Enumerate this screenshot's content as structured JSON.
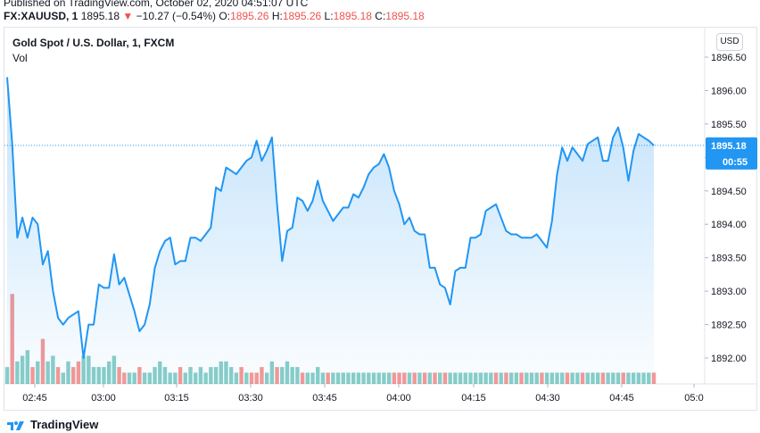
{
  "header": {
    "published": "Published on TradingView.com, October 02, 2020 04:51:07 UTC",
    "symbol": "FX:XAUUSD, 1",
    "last": "1895.18",
    "change_arrow": "▼",
    "change": "−10.27 (−0.54%)",
    "o_label": "O:",
    "o": "1895.26",
    "h_label": "H:",
    "h": "1895.26",
    "l_label": "L:",
    "l": "1895.18",
    "c_label": "C:",
    "c": "1895.18"
  },
  "legend": {
    "title": "Gold Spot / U.S. Dollar, 1, FXCM",
    "vol_label": "Vol"
  },
  "currency_button": "USD",
  "price_tag": {
    "value": "1895.18",
    "countdown": "00:55"
  },
  "footer": {
    "brand": "TradingView"
  },
  "colors": {
    "line": "#2196f3",
    "up_volume": "#26a69a",
    "down_volume": "#ef5350",
    "price_tag": "#2196f3"
  },
  "chart_data": {
    "type": "area",
    "y_ticks": [
      "1896.50",
      "1896.00",
      "1895.50",
      "1895.00",
      "1894.50",
      "1894.00",
      "1893.50",
      "1893.00",
      "1892.50",
      "1892.00"
    ],
    "x_ticks": [
      "02:45",
      "03:00",
      "03:15",
      "03:30",
      "03:45",
      "04:00",
      "04:15",
      "04:30",
      "04:45",
      "05:0"
    ],
    "ylim": [
      1891.5,
      1896.8
    ],
    "last_price": 1895.18,
    "series": [
      {
        "values": [
          1896.2,
          1895.2,
          1893.8,
          1894.1,
          1893.8,
          1894.1,
          1894.0,
          1893.4,
          1893.6,
          1893.0,
          1892.6,
          1892.5,
          1892.6,
          1892.65,
          1892.7,
          1892.0,
          1892.5,
          1892.5,
          1893.1,
          1893.05,
          1893.05,
          1893.55,
          1893.1,
          1893.2,
          1892.95,
          1892.7,
          1892.4,
          1892.5,
          1892.8,
          1893.35,
          1893.6,
          1893.75,
          1893.8,
          1893.4,
          1893.45,
          1893.45,
          1893.8,
          1893.8,
          1893.75,
          1893.85,
          1893.95,
          1894.55,
          1894.5,
          1894.85,
          1894.8,
          1894.75,
          1894.85,
          1894.95,
          1895.0,
          1895.25,
          1894.95,
          1895.1,
          1895.3,
          1894.3,
          1893.45,
          1893.9,
          1893.95,
          1894.4,
          1894.35,
          1894.2,
          1894.35,
          1894.65,
          1894.35,
          1894.2,
          1894.05,
          1894.15,
          1894.25,
          1894.25,
          1894.45,
          1894.4,
          1894.55,
          1894.75,
          1894.85,
          1894.9,
          1895.05,
          1894.85,
          1894.5,
          1894.3,
          1894.0,
          1894.1,
          1893.9,
          1893.85,
          1893.85,
          1893.35,
          1893.35,
          1893.1,
          1893.05,
          1892.8,
          1893.3,
          1893.35,
          1893.35,
          1893.8,
          1893.8,
          1893.85,
          1894.2,
          1894.25,
          1894.3,
          1894.1,
          1893.9,
          1893.85,
          1893.85,
          1893.8,
          1893.8,
          1893.8,
          1893.85,
          1893.75,
          1893.65,
          1894.05,
          1894.75,
          1895.15,
          1894.95,
          1895.15,
          1895.05,
          1894.95,
          1895.2,
          1895.25,
          1895.3,
          1894.95,
          1894.95,
          1895.3,
          1895.45,
          1895.15,
          1894.65,
          1895.1,
          1895.35,
          1895.3,
          1895.25,
          1895.18
        ]
      }
    ],
    "volume": {
      "values": [
        3,
        16,
        4,
        5,
        6,
        3,
        4,
        8,
        4,
        5,
        3,
        2,
        4,
        3,
        4,
        5,
        5,
        3,
        3,
        3,
        4,
        5,
        3,
        2,
        2,
        2,
        3,
        2,
        2,
        3,
        4,
        3,
        2,
        2,
        3,
        2,
        3,
        2,
        3,
        2,
        3,
        3,
        4,
        4,
        3,
        2,
        3,
        2,
        2,
        2,
        3,
        2,
        4,
        3,
        3,
        4,
        3,
        3,
        2,
        2,
        2,
        3,
        2,
        2,
        2,
        2,
        2,
        2,
        2,
        2,
        2,
        2,
        2,
        2,
        2,
        2,
        2,
        2,
        2,
        2,
        2,
        2,
        2,
        2,
        2,
        2,
        2,
        2,
        2,
        2,
        2,
        2,
        2,
        2,
        2,
        2,
        2,
        2,
        2,
        2,
        2,
        2,
        2,
        2,
        2,
        2,
        2,
        2,
        2,
        2,
        2,
        2,
        2,
        2,
        2,
        2,
        2,
        2,
        2,
        2,
        2,
        2,
        2,
        2,
        2,
        2,
        2,
        2
      ],
      "up": [
        true,
        false,
        true,
        true,
        true,
        false,
        true,
        false,
        true,
        true,
        false,
        true,
        true,
        false,
        false,
        true,
        true,
        true,
        true,
        true,
        true,
        true,
        false,
        false,
        true,
        true,
        false,
        true,
        true,
        true,
        true,
        true,
        true,
        true,
        false,
        true,
        true,
        true,
        true,
        true,
        true,
        true,
        true,
        true,
        true,
        true,
        false,
        true,
        false,
        false,
        false,
        true,
        true,
        false,
        true,
        true,
        true,
        true,
        false,
        true,
        true,
        true,
        true,
        false,
        true,
        true,
        true,
        true,
        true,
        true,
        true,
        true,
        true,
        true,
        true,
        true,
        false,
        false,
        false,
        true,
        false,
        true,
        false,
        true,
        false,
        true,
        false,
        true,
        true,
        true,
        true,
        true,
        true,
        true,
        true,
        true,
        false,
        true,
        false,
        true,
        true,
        false,
        true,
        true,
        true,
        false,
        true,
        true,
        true,
        true,
        false,
        true,
        true,
        false,
        true,
        true,
        true,
        false,
        true,
        true,
        true,
        false,
        true,
        true,
        true,
        true,
        true,
        false
      ]
    }
  }
}
